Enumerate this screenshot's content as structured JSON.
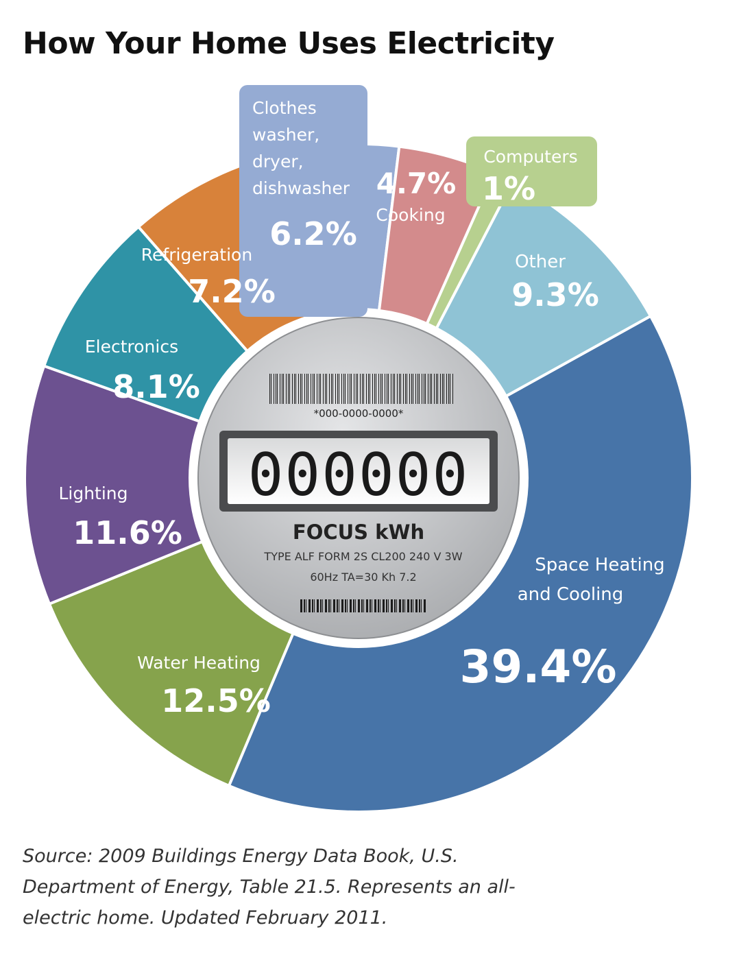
{
  "title": "How Your Home Uses Electricity",
  "chart_data": {
    "type": "pie",
    "title": "How Your Home Uses Electricity",
    "slices": [
      {
        "label": "Space Heating and Cooling",
        "value": 39.4,
        "display": "39.4%",
        "color": "#4774a8"
      },
      {
        "label": "Water Heating",
        "value": 12.5,
        "display": "12.5%",
        "color": "#86a34c"
      },
      {
        "label": "Lighting",
        "value": 11.6,
        "display": "11.6%",
        "color": "#6c5190"
      },
      {
        "label": "Electronics",
        "value": 8.1,
        "display": "8.1%",
        "color": "#2f93a6"
      },
      {
        "label": "Refrigeration",
        "value": 7.2,
        "display": "7.2%",
        "color": "#d8823a"
      },
      {
        "label": "Clothes washer, dryer, dishwasher",
        "value": 6.2,
        "display": "6.2%",
        "color": "#95abd3"
      },
      {
        "label": "Cooking",
        "value": 4.7,
        "display": "4.7%",
        "color": "#d38b8c"
      },
      {
        "label": "Computers",
        "value": 1.0,
        "display": "1%",
        "color": "#b7d08f"
      },
      {
        "label": "Other",
        "value": 9.3,
        "display": "9.3%",
        "color": "#8fc3d5"
      }
    ]
  },
  "labels": {
    "space": {
      "line1": "Space Heating",
      "line2": "and Cooling",
      "pct": "39.4%"
    },
    "water": {
      "name": "Water Heating",
      "pct": "12.5%"
    },
    "lighting": {
      "name": "Lighting",
      "pct": "11.6%"
    },
    "electronics": {
      "name": "Electronics",
      "pct": "8.1%"
    },
    "refrigeration": {
      "name": "Refrigeration",
      "pct": "7.2%"
    },
    "clothes": {
      "line1": "Clothes",
      "line2": "washer,",
      "line3": "dryer,",
      "line4": "dishwasher",
      "pct": "6.2%"
    },
    "cooking": {
      "name": "Cooking",
      "pct": "4.7%"
    },
    "computers": {
      "name": "Computers",
      "pct": "1%"
    },
    "other": {
      "name": "Other",
      "pct": "9.3%"
    }
  },
  "meter": {
    "serial": "*000-0000-0000*",
    "reading": "000000",
    "brand": "FOCUS kWh",
    "spec1": "TYPE ALF FORM 2S CL200 240 V 3W",
    "spec2": "60Hz TA=30 Kh 7.2"
  },
  "source": "Source: 2009 Buildings Energy Data Book, U.S. Department of Energy, Table 21.5. Represents an all-electric home. Updated February 2011."
}
